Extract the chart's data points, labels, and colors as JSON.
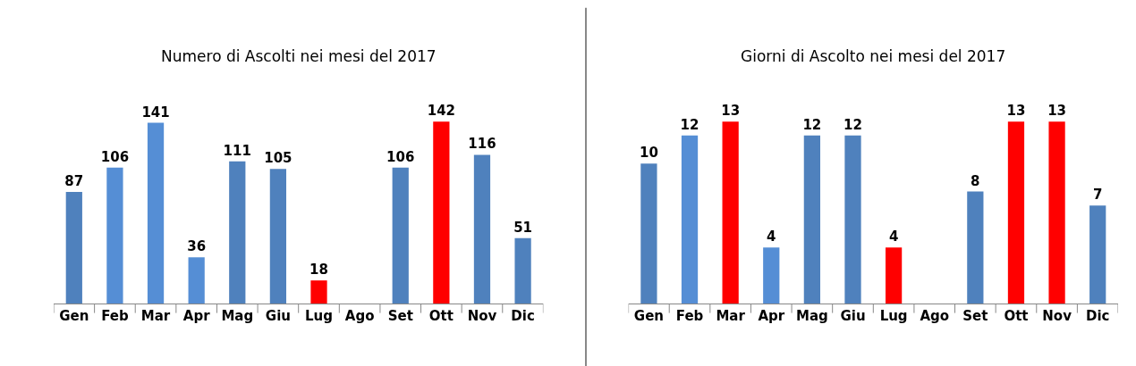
{
  "chart_data": [
    {
      "type": "bar",
      "title": "Numero di Ascolti nei mesi del 2017",
      "data_labels": true,
      "categories": [
        "Gen",
        "Feb",
        "Mar",
        "Apr",
        "Mag",
        "Giu",
        "Lug",
        "Ago",
        "Set",
        "Ott",
        "Nov",
        "Dic"
      ],
      "values": [
        87,
        106,
        141,
        36,
        111,
        105,
        18,
        null,
        106,
        142,
        116,
        51
      ],
      "colors": [
        "#4f81bd",
        "#558ed5",
        "#558ed5",
        "#558ed5",
        "#4f81bd",
        "#4f81bd",
        "#ff0000",
        "#4f81bd",
        "#4f81bd",
        "#ff0000",
        "#4f81bd",
        "#4f81bd"
      ]
    },
    {
      "type": "bar",
      "title": "Giorni di Ascolto nei mesi del 2017",
      "data_labels": true,
      "categories": [
        "Gen",
        "Feb",
        "Mar",
        "Apr",
        "Mag",
        "Giu",
        "Lug",
        "Ago",
        "Set",
        "Ott",
        "Nov",
        "Dic"
      ],
      "values": [
        10,
        12,
        13,
        4,
        12,
        12,
        4,
        null,
        8,
        13,
        13,
        7
      ],
      "colors": [
        "#4f81bd",
        "#558ed5",
        "#ff0000",
        "#558ed5",
        "#4f81bd",
        "#4f81bd",
        "#ff0000",
        "#4f81bd",
        "#4f81bd",
        "#ff0000",
        "#ff0000",
        "#4f81bd"
      ]
    }
  ]
}
